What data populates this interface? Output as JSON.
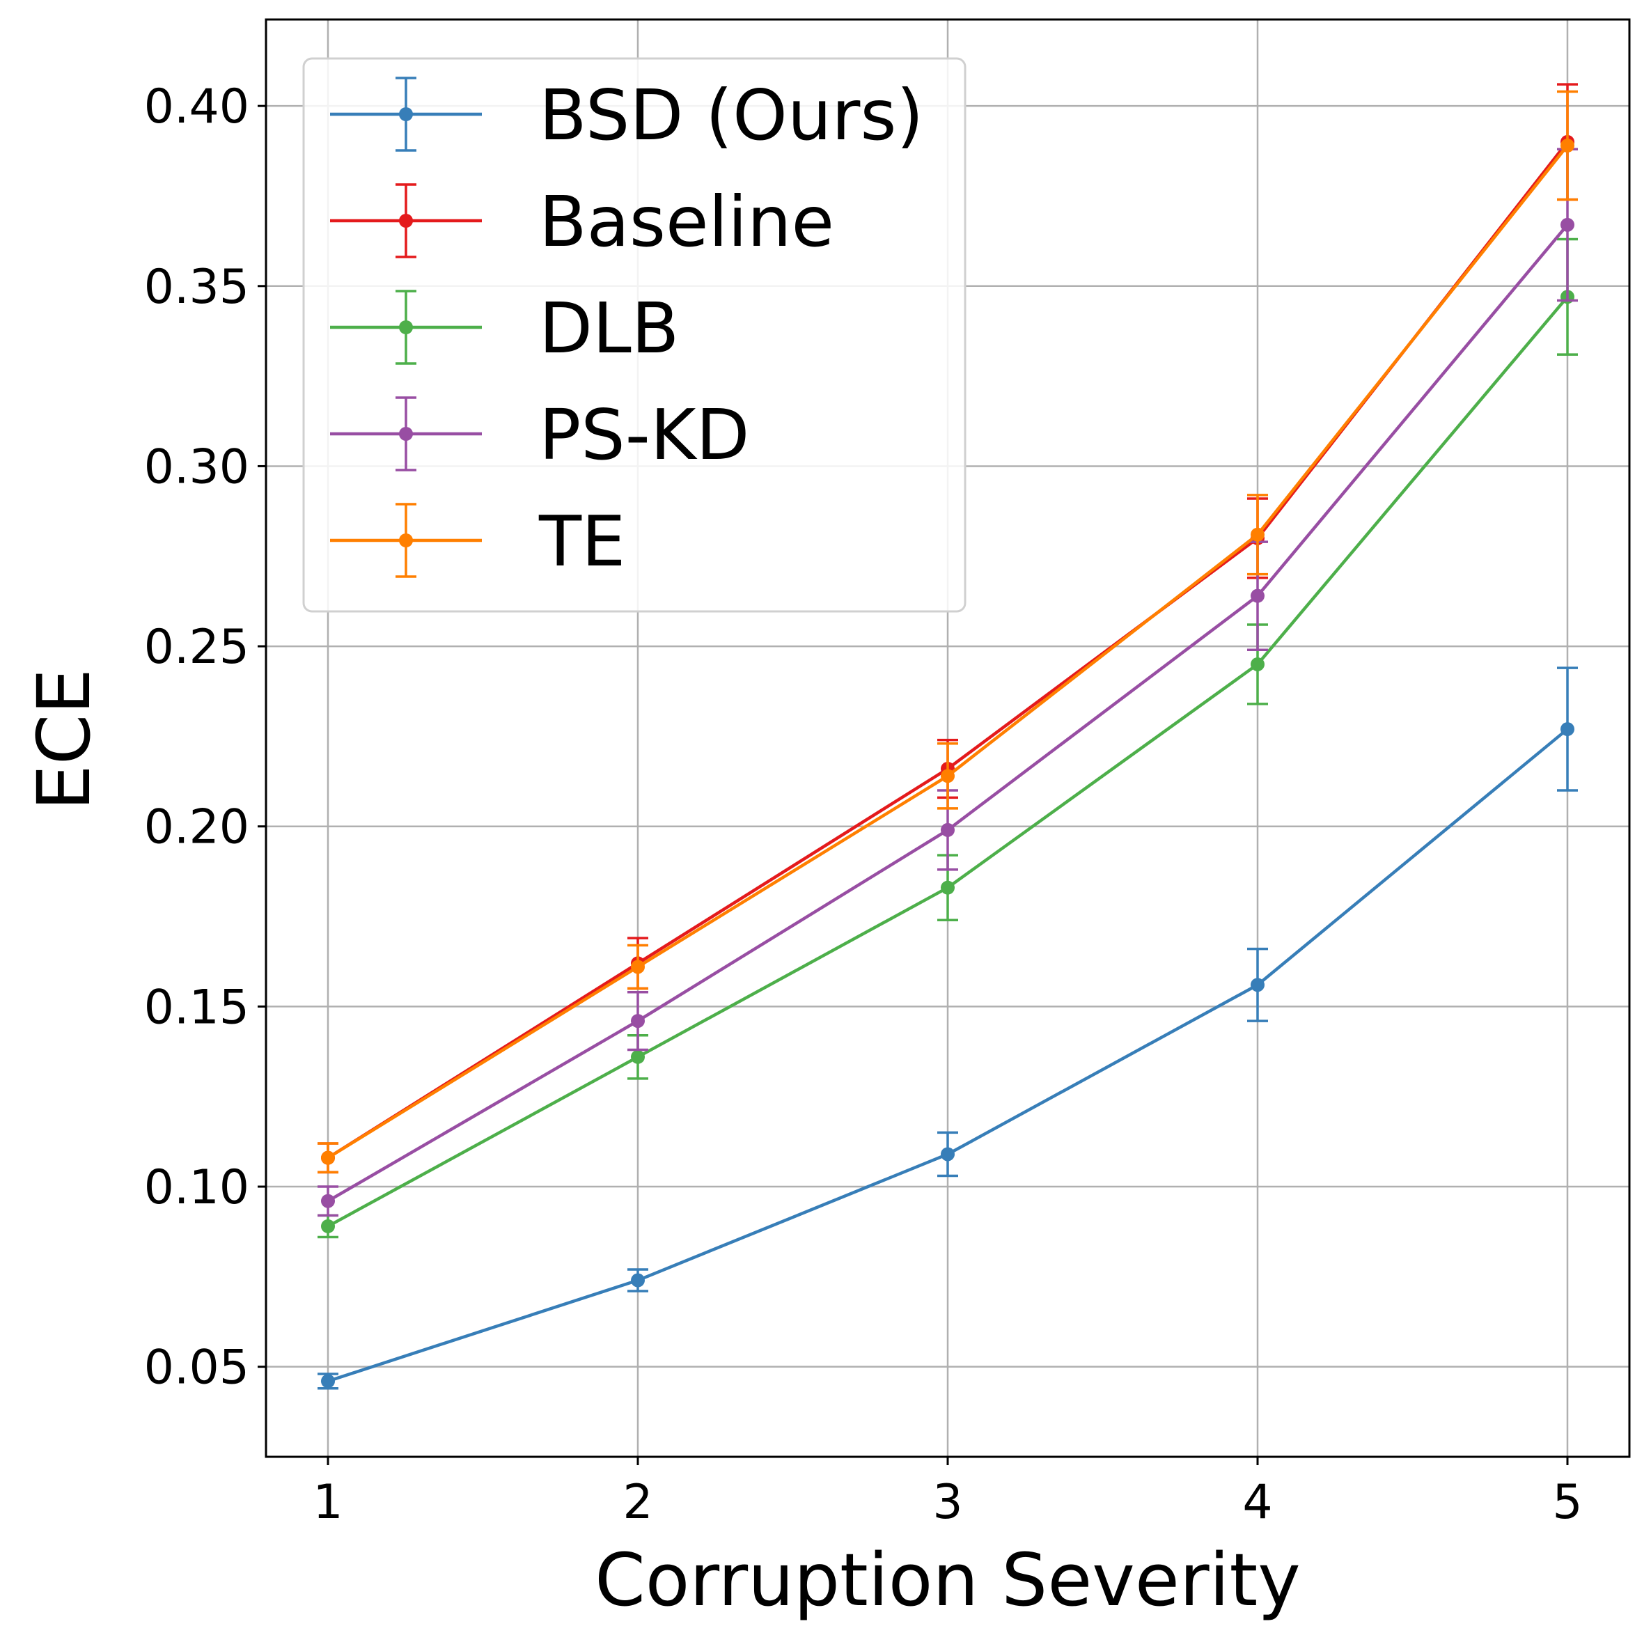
{
  "chart_data": {
    "type": "line",
    "title": "",
    "xlabel": "Corruption Severity",
    "ylabel": "ECE",
    "x": [
      1,
      2,
      3,
      4,
      5
    ],
    "xticks": [
      "1",
      "2",
      "3",
      "4",
      "5"
    ],
    "xlim": [
      0.8,
      5.2
    ],
    "yticks": [
      "0.05",
      "0.10",
      "0.15",
      "0.20",
      "0.25",
      "0.30",
      "0.35",
      "0.40"
    ],
    "ylim": [
      0.025,
      0.424
    ],
    "grid": true,
    "legend_position": "upper-left",
    "error_bars": true,
    "series": [
      {
        "name": "BSD (Ours)",
        "color": "#377eb8",
        "values": [
          0.046,
          0.074,
          0.109,
          0.156,
          0.227
        ],
        "errors": [
          0.002,
          0.003,
          0.006,
          0.01,
          0.017
        ]
      },
      {
        "name": "Baseline",
        "color": "#e41a1c",
        "values": [
          0.108,
          0.162,
          0.216,
          0.28,
          0.39
        ],
        "errors": [
          0.004,
          0.007,
          0.008,
          0.011,
          0.016
        ]
      },
      {
        "name": "DLB",
        "color": "#4daf4a",
        "values": [
          0.089,
          0.136,
          0.183,
          0.245,
          0.347
        ],
        "errors": [
          0.003,
          0.006,
          0.009,
          0.011,
          0.016
        ]
      },
      {
        "name": "PS-KD",
        "color": "#984ea3",
        "values": [
          0.096,
          0.146,
          0.199,
          0.264,
          0.367
        ],
        "errors": [
          0.004,
          0.008,
          0.011,
          0.015,
          0.021
        ]
      },
      {
        "name": "TE",
        "color": "#ff7f00",
        "values": [
          0.108,
          0.161,
          0.214,
          0.281,
          0.389
        ],
        "errors": [
          0.004,
          0.006,
          0.009,
          0.011,
          0.015
        ]
      }
    ]
  }
}
